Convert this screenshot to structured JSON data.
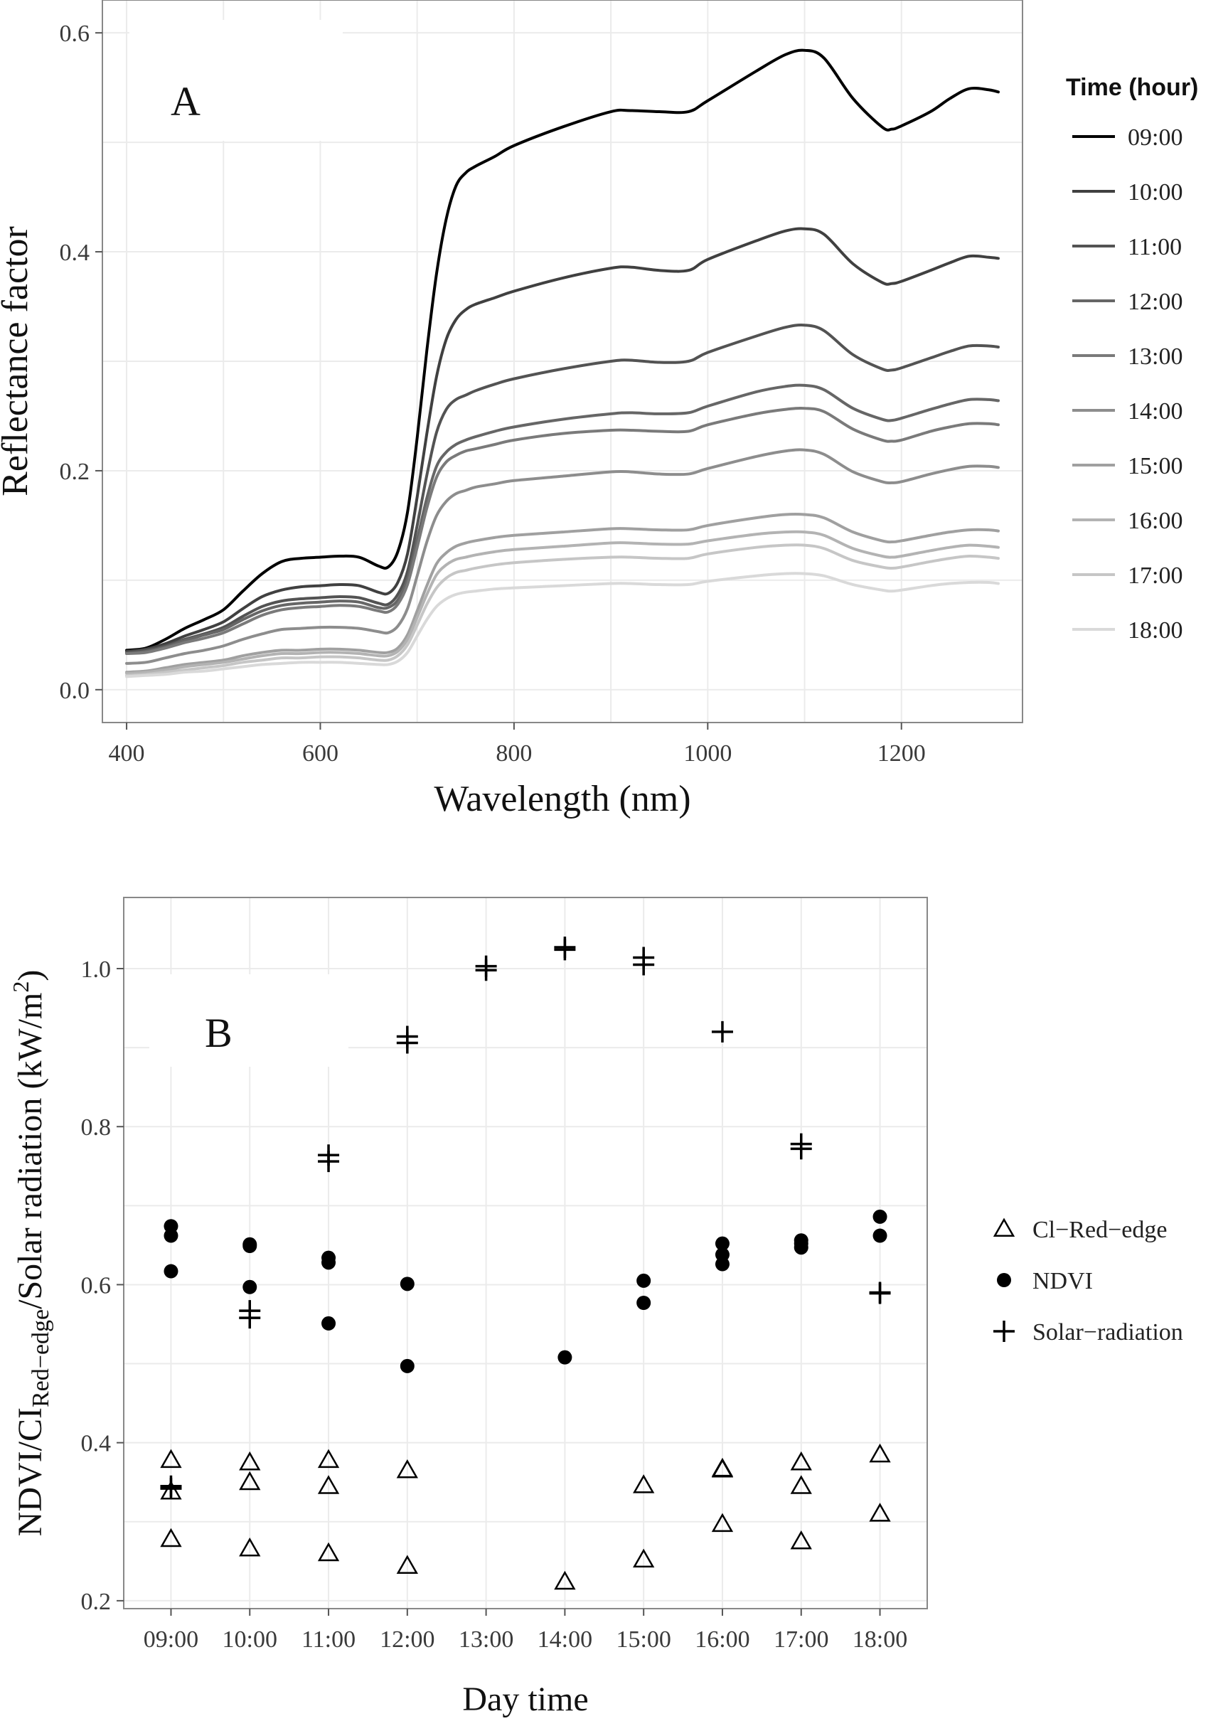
{
  "chart_data": [
    {
      "type": "line",
      "panel_label": "A",
      "xlabel": "Wavelength (nm)",
      "ylabel": "Reflectance factor",
      "xlim": [
        375,
        1325
      ],
      "ylim": [
        -0.03,
        0.63
      ],
      "xticks": [
        400,
        600,
        800,
        1000,
        1200
      ],
      "yticks": [
        0.0,
        0.2,
        0.4,
        0.6
      ],
      "grid": true,
      "legend": {
        "title": "Time (hour)",
        "position": "right"
      },
      "x": [
        400,
        420,
        440,
        460,
        480,
        500,
        520,
        540,
        560,
        580,
        600,
        620,
        640,
        660,
        670,
        680,
        690,
        700,
        710,
        720,
        730,
        740,
        750,
        760,
        780,
        800,
        850,
        900,
        920,
        950,
        980,
        1000,
        1050,
        1080,
        1100,
        1120,
        1150,
        1180,
        1190,
        1200,
        1230,
        1250,
        1270,
        1290,
        1300
      ],
      "series": [
        {
          "name": "09:00",
          "color": "#000000",
          "values": [
            0.036,
            0.038,
            0.046,
            0.056,
            0.064,
            0.073,
            0.09,
            0.106,
            0.117,
            0.12,
            0.121,
            0.122,
            0.121,
            0.113,
            0.112,
            0.126,
            0.162,
            0.23,
            0.31,
            0.38,
            0.43,
            0.46,
            0.472,
            0.478,
            0.487,
            0.497,
            0.514,
            0.528,
            0.529,
            0.528,
            0.528,
            0.538,
            0.565,
            0.58,
            0.584,
            0.577,
            0.54,
            0.514,
            0.512,
            0.515,
            0.528,
            0.54,
            0.549,
            0.548,
            0.546
          ]
        },
        {
          "name": "10:00",
          "color": "#404040",
          "values": [
            0.035,
            0.037,
            0.042,
            0.049,
            0.055,
            0.062,
            0.074,
            0.085,
            0.091,
            0.094,
            0.095,
            0.096,
            0.095,
            0.089,
            0.088,
            0.098,
            0.124,
            0.176,
            0.234,
            0.286,
            0.32,
            0.338,
            0.347,
            0.352,
            0.358,
            0.364,
            0.376,
            0.385,
            0.386,
            0.383,
            0.383,
            0.393,
            0.41,
            0.419,
            0.421,
            0.416,
            0.389,
            0.372,
            0.371,
            0.373,
            0.383,
            0.39,
            0.396,
            0.395,
            0.394
          ]
        },
        {
          "name": "11:00",
          "color": "#535353",
          "values": [
            0.034,
            0.036,
            0.04,
            0.046,
            0.051,
            0.057,
            0.067,
            0.076,
            0.081,
            0.083,
            0.084,
            0.085,
            0.084,
            0.079,
            0.078,
            0.087,
            0.108,
            0.15,
            0.196,
            0.235,
            0.256,
            0.265,
            0.269,
            0.273,
            0.279,
            0.284,
            0.293,
            0.3,
            0.301,
            0.299,
            0.3,
            0.308,
            0.323,
            0.331,
            0.333,
            0.328,
            0.306,
            0.293,
            0.292,
            0.294,
            0.303,
            0.309,
            0.314,
            0.314,
            0.313
          ]
        },
        {
          "name": "12:00",
          "color": "#666666",
          "values": [
            0.033,
            0.035,
            0.039,
            0.045,
            0.05,
            0.055,
            0.064,
            0.072,
            0.077,
            0.079,
            0.08,
            0.081,
            0.08,
            0.075,
            0.075,
            0.082,
            0.101,
            0.137,
            0.175,
            0.204,
            0.217,
            0.224,
            0.228,
            0.231,
            0.236,
            0.24,
            0.247,
            0.252,
            0.253,
            0.252,
            0.253,
            0.259,
            0.272,
            0.277,
            0.278,
            0.274,
            0.257,
            0.247,
            0.246,
            0.248,
            0.256,
            0.261,
            0.265,
            0.265,
            0.264
          ]
        },
        {
          "name": "13:00",
          "color": "#7a7a7a",
          "values": [
            0.033,
            0.034,
            0.038,
            0.043,
            0.047,
            0.052,
            0.06,
            0.068,
            0.073,
            0.075,
            0.076,
            0.077,
            0.076,
            0.072,
            0.071,
            0.078,
            0.096,
            0.13,
            0.166,
            0.194,
            0.208,
            0.214,
            0.218,
            0.22,
            0.224,
            0.228,
            0.234,
            0.237,
            0.237,
            0.236,
            0.236,
            0.242,
            0.252,
            0.256,
            0.257,
            0.254,
            0.238,
            0.228,
            0.227,
            0.228,
            0.236,
            0.24,
            0.243,
            0.243,
            0.242
          ]
        },
        {
          "name": "14:00",
          "color": "#8d8d8d",
          "values": [
            0.024,
            0.025,
            0.029,
            0.033,
            0.036,
            0.04,
            0.046,
            0.051,
            0.055,
            0.056,
            0.057,
            0.057,
            0.056,
            0.053,
            0.052,
            0.058,
            0.074,
            0.104,
            0.135,
            0.159,
            0.172,
            0.179,
            0.182,
            0.185,
            0.188,
            0.191,
            0.195,
            0.199,
            0.199,
            0.197,
            0.197,
            0.202,
            0.213,
            0.218,
            0.219,
            0.215,
            0.199,
            0.19,
            0.189,
            0.19,
            0.197,
            0.201,
            0.204,
            0.204,
            0.203
          ]
        },
        {
          "name": "15:00",
          "color": "#a0a0a0",
          "values": [
            0.016,
            0.017,
            0.02,
            0.023,
            0.025,
            0.027,
            0.031,
            0.034,
            0.036,
            0.036,
            0.037,
            0.037,
            0.036,
            0.034,
            0.034,
            0.038,
            0.05,
            0.072,
            0.095,
            0.115,
            0.125,
            0.131,
            0.134,
            0.136,
            0.139,
            0.141,
            0.144,
            0.147,
            0.147,
            0.146,
            0.146,
            0.15,
            0.157,
            0.16,
            0.16,
            0.157,
            0.144,
            0.136,
            0.135,
            0.136,
            0.141,
            0.144,
            0.146,
            0.146,
            0.145
          ]
        },
        {
          "name": "16:00",
          "color": "#b3b3b3",
          "values": [
            0.015,
            0.016,
            0.018,
            0.021,
            0.023,
            0.025,
            0.028,
            0.031,
            0.033,
            0.033,
            0.034,
            0.034,
            0.033,
            0.031,
            0.031,
            0.035,
            0.046,
            0.066,
            0.087,
            0.105,
            0.114,
            0.119,
            0.121,
            0.123,
            0.126,
            0.128,
            0.131,
            0.134,
            0.134,
            0.133,
            0.133,
            0.136,
            0.142,
            0.144,
            0.144,
            0.141,
            0.129,
            0.122,
            0.121,
            0.122,
            0.127,
            0.13,
            0.132,
            0.131,
            0.13
          ]
        },
        {
          "name": "17:00",
          "color": "#c6c6c6",
          "values": [
            0.013,
            0.014,
            0.016,
            0.018,
            0.02,
            0.022,
            0.025,
            0.027,
            0.029,
            0.029,
            0.03,
            0.03,
            0.029,
            0.027,
            0.027,
            0.031,
            0.041,
            0.059,
            0.078,
            0.093,
            0.102,
            0.107,
            0.109,
            0.111,
            0.114,
            0.116,
            0.119,
            0.121,
            0.121,
            0.12,
            0.12,
            0.124,
            0.13,
            0.132,
            0.132,
            0.129,
            0.118,
            0.112,
            0.111,
            0.112,
            0.117,
            0.12,
            0.122,
            0.121,
            0.12
          ]
        },
        {
          "name": "18:00",
          "color": "#d9d9d9",
          "values": [
            0.012,
            0.013,
            0.014,
            0.016,
            0.017,
            0.019,
            0.021,
            0.023,
            0.024,
            0.025,
            0.025,
            0.025,
            0.024,
            0.023,
            0.023,
            0.026,
            0.034,
            0.049,
            0.064,
            0.076,
            0.083,
            0.087,
            0.089,
            0.09,
            0.092,
            0.093,
            0.095,
            0.097,
            0.097,
            0.096,
            0.096,
            0.099,
            0.104,
            0.106,
            0.106,
            0.104,
            0.096,
            0.091,
            0.09,
            0.091,
            0.095,
            0.097,
            0.098,
            0.098,
            0.097
          ]
        }
      ]
    },
    {
      "type": "scatter",
      "panel_label": "B",
      "xlabel": "Day time",
      "ylabel": "NDVI/CIRed−edge/Solar radiation (kW/m2)",
      "ylabel_parts": {
        "a": "NDVI/CI",
        "sub": "Red−edge",
        "b": "/Solar radiation (kW/m",
        "sup": "2",
        "c": ")"
      },
      "categories": [
        "09:00",
        "10:00",
        "11:00",
        "12:00",
        "13:00",
        "14:00",
        "15:00",
        "16:00",
        "17:00",
        "18:00"
      ],
      "ylim": [
        0.19,
        1.09
      ],
      "yticks": [
        0.2,
        0.4,
        0.6,
        0.8,
        1.0
      ],
      "grid": true,
      "legend": {
        "position": "right"
      },
      "series": [
        {
          "name": "Cl−Red−edge",
          "marker": "triangle",
          "points": [
            [
              "09:00",
              0.378
            ],
            [
              "09:00",
              0.338
            ],
            [
              "09:00",
              0.278
            ],
            [
              "10:00",
              0.375
            ],
            [
              "10:00",
              0.35
            ],
            [
              "10:00",
              0.266
            ],
            [
              "11:00",
              0.378
            ],
            [
              "11:00",
              0.345
            ],
            [
              "11:00",
              0.26
            ],
            [
              "12:00",
              0.365
            ],
            [
              "12:00",
              0.244
            ],
            [
              "14:00",
              0.224
            ],
            [
              "15:00",
              0.346
            ],
            [
              "15:00",
              0.252
            ],
            [
              "16:00",
              0.367
            ],
            [
              "16:00",
              0.366
            ],
            [
              "16:00",
              0.297
            ],
            [
              "17:00",
              0.375
            ],
            [
              "17:00",
              0.345
            ],
            [
              "17:00",
              0.275
            ],
            [
              "18:00",
              0.385
            ],
            [
              "18:00",
              0.31
            ]
          ]
        },
        {
          "name": "NDVI",
          "marker": "circle",
          "points": [
            [
              "09:00",
              0.674
            ],
            [
              "09:00",
              0.662
            ],
            [
              "09:00",
              0.617
            ],
            [
              "10:00",
              0.651
            ],
            [
              "10:00",
              0.649
            ],
            [
              "10:00",
              0.597
            ],
            [
              "11:00",
              0.634
            ],
            [
              "11:00",
              0.628
            ],
            [
              "11:00",
              0.551
            ],
            [
              "12:00",
              0.601
            ],
            [
              "12:00",
              0.497
            ],
            [
              "14:00",
              0.508
            ],
            [
              "15:00",
              0.605
            ],
            [
              "15:00",
              0.577
            ],
            [
              "16:00",
              0.652
            ],
            [
              "16:00",
              0.638
            ],
            [
              "16:00",
              0.626
            ],
            [
              "17:00",
              0.656
            ],
            [
              "17:00",
              0.652
            ],
            [
              "17:00",
              0.647
            ],
            [
              "18:00",
              0.686
            ],
            [
              "18:00",
              0.662
            ]
          ]
        },
        {
          "name": "Solar−radiation",
          "marker": "plus",
          "points": [
            [
              "09:00",
              0.345
            ],
            [
              "09:00",
              0.342
            ],
            [
              "10:00",
              0.567
            ],
            [
              "10:00",
              0.558
            ],
            [
              "11:00",
              0.764
            ],
            [
              "11:00",
              0.756
            ],
            [
              "12:00",
              0.914
            ],
            [
              "12:00",
              0.906
            ],
            [
              "13:00",
              1.003
            ],
            [
              "13:00",
              0.998
            ],
            [
              "14:00",
              1.027
            ],
            [
              "14:00",
              1.024
            ],
            [
              "15:00",
              1.014
            ],
            [
              "15:00",
              1.005
            ],
            [
              "16:00",
              0.92
            ],
            [
              "17:00",
              0.778
            ],
            [
              "17:00",
              0.772
            ],
            [
              "18:00",
              0.59
            ],
            [
              "18:00",
              0.589
            ]
          ]
        }
      ]
    }
  ]
}
